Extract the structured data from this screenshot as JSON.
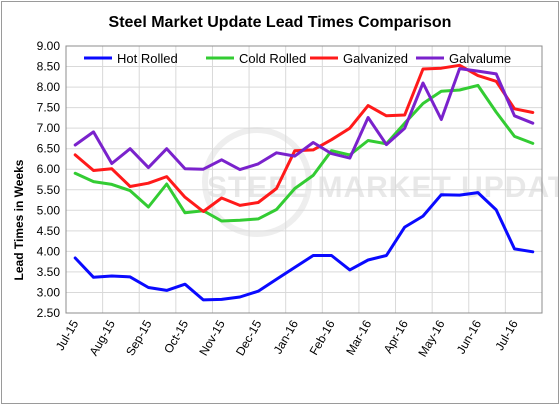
{
  "chart_data": {
    "type": "line",
    "title": "Steel Market Update Lead Times Comparison",
    "xlabel": "",
    "ylabel": "Lead Times in Weeks",
    "ylim": [
      2.5,
      9.0
    ],
    "yticks": [
      2.5,
      3.0,
      3.5,
      4.0,
      4.5,
      5.0,
      5.5,
      6.0,
      6.5,
      7.0,
      7.5,
      8.0,
      8.5,
      9.0
    ],
    "ytick_labels": [
      "2.50",
      "3.00",
      "3.50",
      "4.00",
      "4.50",
      "5.00",
      "5.50",
      "6.00",
      "6.50",
      "7.00",
      "7.50",
      "8.00",
      "8.50",
      "9.00"
    ],
    "xtick_labels": [
      "Jul-15",
      "Aug-15",
      "Sep-15",
      "Oct-15",
      "Nov-15",
      "Dec-15",
      "Jan-16",
      "Feb-16",
      "Mar-16",
      "Apr-16",
      "May-16",
      "Jun-16",
      "Jul-16"
    ],
    "points_per_month": 2,
    "grid": true,
    "legend_position": "top",
    "watermark": "STEEL MARKET UPDATE",
    "series": [
      {
        "name": "Hot Rolled",
        "color": "#0a0aff",
        "values": [
          3.84,
          3.37,
          3.4,
          3.38,
          3.12,
          3.05,
          3.2,
          2.82,
          2.83,
          2.89,
          3.03,
          3.32,
          3.61,
          3.9,
          3.9,
          3.55,
          3.79,
          3.9,
          4.59,
          4.86,
          5.38,
          5.37,
          5.43,
          5.01,
          4.06,
          3.99
        ]
      },
      {
        "name": "Cold Rolled",
        "color": "#33cc33",
        "values": [
          5.9,
          5.7,
          5.63,
          5.48,
          5.08,
          5.64,
          4.94,
          4.99,
          4.74,
          4.76,
          4.79,
          5.02,
          5.53,
          5.85,
          6.45,
          6.35,
          6.7,
          6.62,
          7.12,
          7.6,
          7.9,
          7.93,
          8.04,
          7.39,
          6.8,
          6.63
        ]
      },
      {
        "name": "Galvanized",
        "color": "#ff1a1a",
        "values": [
          6.35,
          5.97,
          6.01,
          5.58,
          5.66,
          5.82,
          5.32,
          4.97,
          5.3,
          5.12,
          5.19,
          5.53,
          6.45,
          6.47,
          6.72,
          7.0,
          7.55,
          7.3,
          7.32,
          8.44,
          8.46,
          8.53,
          8.28,
          8.14,
          7.47,
          7.38
        ]
      },
      {
        "name": "Galvalume",
        "color": "#7a22cc",
        "values": [
          6.59,
          6.91,
          6.14,
          6.5,
          6.04,
          6.5,
          6.01,
          6.0,
          6.23,
          5.99,
          6.13,
          6.4,
          6.32,
          6.65,
          6.38,
          6.27,
          7.26,
          6.6,
          7.0,
          8.1,
          7.21,
          8.45,
          8.39,
          8.32,
          7.3,
          7.12
        ]
      }
    ]
  }
}
